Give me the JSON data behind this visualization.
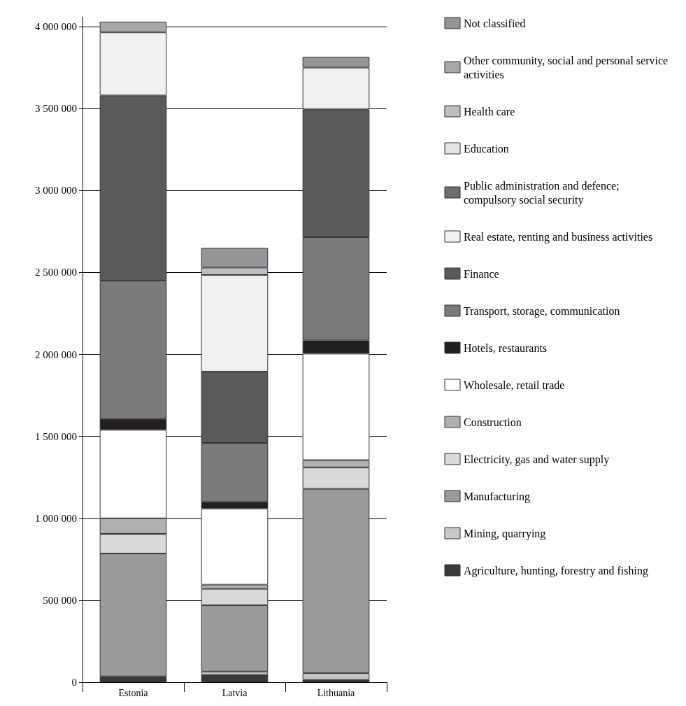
{
  "chart_data": {
    "type": "bar",
    "stacked": true,
    "categories": [
      "Estonia",
      "Latvia",
      "Lithuania"
    ],
    "series": [
      {
        "name": "Agriculture, hunting, forestry and fishing",
        "color": "#3a3a3a",
        "values": [
          35000,
          45000,
          15000
        ]
      },
      {
        "name": "Mining, quarrying",
        "color": "#c8c8c8",
        "values": [
          0,
          20000,
          40000
        ]
      },
      {
        "name": "Manufacturing",
        "color": "#9a9a9a",
        "values": [
          750000,
          405000,
          1125000
        ]
      },
      {
        "name": "Electricity, gas and water supply",
        "color": "#d9d9d9",
        "values": [
          120000,
          100000,
          130000
        ]
      },
      {
        "name": "Construction",
        "color": "#b0b0b0",
        "values": [
          95000,
          25000,
          45000
        ]
      },
      {
        "name": "Wholesale, retail trade",
        "color": "#ffffff",
        "values": [
          540000,
          465000,
          650000
        ]
      },
      {
        "name": "Hotels, restaurants",
        "color": "#231f20",
        "values": [
          65000,
          40000,
          80000
        ]
      },
      {
        "name": "Transport, storage, communication",
        "color": "#7a7a7a",
        "values": [
          845000,
          360000,
          630000
        ]
      },
      {
        "name": "Finance",
        "color": "#5a5a5a",
        "values": [
          1130000,
          435000,
          780000
        ]
      },
      {
        "name": "Real estate, renting and business activities",
        "color": "#f0f0f0",
        "values": [
          385000,
          590000,
          255000
        ]
      },
      {
        "name": "Public administration and defence; compulsory social security",
        "color": "#6d6d6d",
        "values": [
          0,
          0,
          0
        ]
      },
      {
        "name": "Education",
        "color": "#e4e4e4",
        "values": [
          0,
          0,
          0
        ]
      },
      {
        "name": "Health care",
        "color": "#bcbec0",
        "values": [
          0,
          45000,
          0
        ]
      },
      {
        "name": "Other community, social and personal service activities",
        "color": "#a8a8a8",
        "values": [
          65000,
          0,
          0
        ]
      },
      {
        "name": "Not classified",
        "color": "#939598",
        "values": [
          0,
          120000,
          65000
        ]
      }
    ],
    "ylim": [
      0,
      4060000
    ],
    "yticks": [
      0,
      500000,
      1000000,
      1500000,
      2000000,
      2500000,
      3000000,
      3500000,
      4000000
    ],
    "grid": "y",
    "legend": "right"
  }
}
